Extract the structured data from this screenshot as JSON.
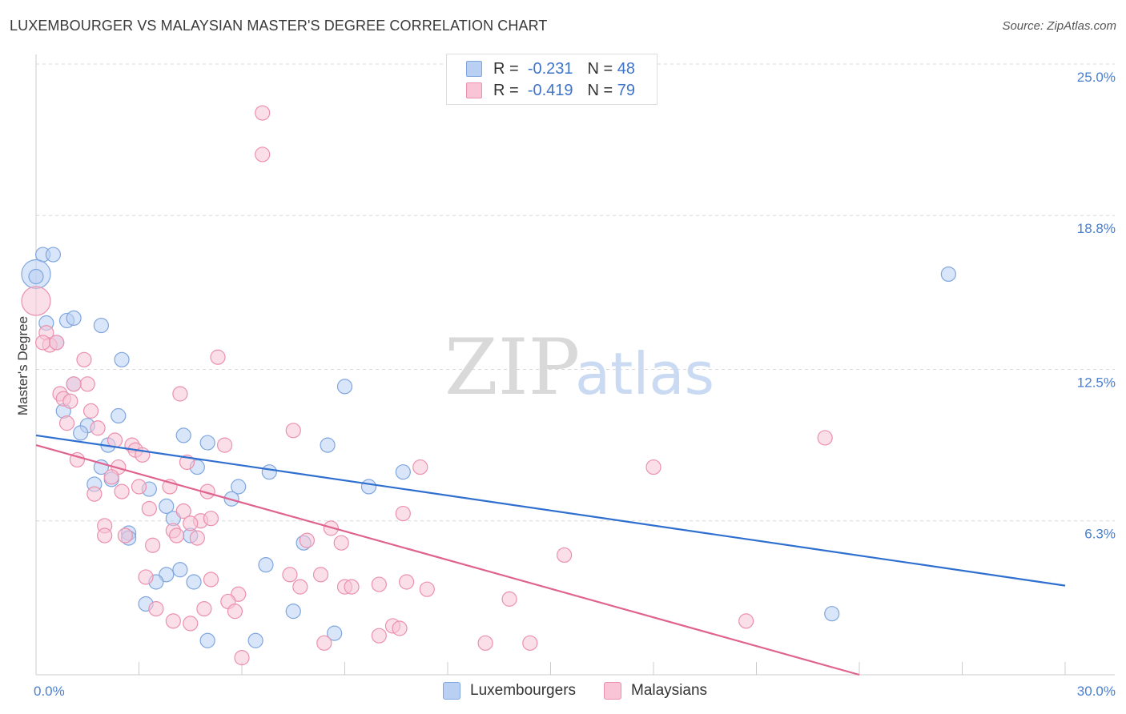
{
  "title": "LUXEMBOURGER VS MALAYSIAN MASTER'S DEGREE CORRELATION CHART",
  "source": "Source: ZipAtlas.com",
  "watermark": {
    "zip": "ZIP",
    "atlas": "atlas"
  },
  "colors": {
    "blue_fill": "#b9d0f2",
    "blue_stroke": "#7fa6df",
    "blue_line": "#2f6fcf",
    "pink_fill": "#f8c4d6",
    "pink_stroke": "#eb90ae",
    "pink_line": "#e0628f",
    "tick_text": "#4a7fd0"
  },
  "legend": {
    "rows": [
      {
        "r_label": "R =",
        "r_value": "-0.231",
        "n_label": "N =",
        "n_value": "48"
      },
      {
        "r_label": "R =",
        "r_value": "-0.419",
        "n_label": "N =",
        "n_value": "79"
      }
    ]
  },
  "bottom_legend": [
    "Luxembourgers",
    "Malaysians"
  ],
  "chart_data": {
    "type": "scatter",
    "title": "LUXEMBOURGER VS MALAYSIAN MASTER'S DEGREE CORRELATION CHART",
    "xlabel": "",
    "ylabel": "Master's Degree",
    "xlim": [
      0,
      30
    ],
    "ylim": [
      0,
      25
    ],
    "x_tick_labels": [
      "0.0%",
      "30.0%"
    ],
    "y_tick_labels": [
      "25.0%",
      "18.8%",
      "12.5%",
      "6.3%"
    ],
    "y_tick_values": [
      25.0,
      18.8,
      12.5,
      6.3
    ],
    "grid": true,
    "series": [
      {
        "name": "Luxembourgers",
        "r": -0.231,
        "n": 48,
        "trend": {
          "x": [
            0,
            30
          ],
          "y": [
            9.8,
            3.65
          ]
        },
        "points": [
          {
            "x": 0.2,
            "y": 17.2
          },
          {
            "x": 0.5,
            "y": 17.2
          },
          {
            "x": 0.0,
            "y": 16.4,
            "big": true
          },
          {
            "x": 0.3,
            "y": 14.4
          },
          {
            "x": 0.9,
            "y": 14.5
          },
          {
            "x": 1.1,
            "y": 14.6
          },
          {
            "x": 1.9,
            "y": 14.3
          },
          {
            "x": 0.6,
            "y": 13.6
          },
          {
            "x": 2.5,
            "y": 12.9
          },
          {
            "x": 1.1,
            "y": 11.9
          },
          {
            "x": 0.8,
            "y": 10.8
          },
          {
            "x": 2.4,
            "y": 10.6
          },
          {
            "x": 1.5,
            "y": 10.2
          },
          {
            "x": 1.3,
            "y": 9.9
          },
          {
            "x": 2.1,
            "y": 9.4
          },
          {
            "x": 4.3,
            "y": 9.8
          },
          {
            "x": 5.0,
            "y": 9.5
          },
          {
            "x": 8.5,
            "y": 9.4
          },
          {
            "x": 9.0,
            "y": 11.8
          },
          {
            "x": 1.9,
            "y": 8.5
          },
          {
            "x": 2.2,
            "y": 8.0
          },
          {
            "x": 1.7,
            "y": 7.8
          },
          {
            "x": 4.7,
            "y": 8.5
          },
          {
            "x": 6.8,
            "y": 8.3
          },
          {
            "x": 10.7,
            "y": 8.3
          },
          {
            "x": 3.3,
            "y": 7.6
          },
          {
            "x": 5.9,
            "y": 7.7
          },
          {
            "x": 9.7,
            "y": 7.7
          },
          {
            "x": 5.7,
            "y": 7.2
          },
          {
            "x": 3.8,
            "y": 6.9
          },
          {
            "x": 4.0,
            "y": 6.4
          },
          {
            "x": 2.7,
            "y": 5.8
          },
          {
            "x": 2.7,
            "y": 5.6
          },
          {
            "x": 4.5,
            "y": 5.7
          },
          {
            "x": 7.8,
            "y": 5.4
          },
          {
            "x": 6.7,
            "y": 4.5
          },
          {
            "x": 4.2,
            "y": 4.3
          },
          {
            "x": 3.8,
            "y": 4.1
          },
          {
            "x": 3.5,
            "y": 3.8
          },
          {
            "x": 4.6,
            "y": 3.8
          },
          {
            "x": 3.2,
            "y": 2.9
          },
          {
            "x": 7.5,
            "y": 2.6
          },
          {
            "x": 8.7,
            "y": 1.7
          },
          {
            "x": 5.0,
            "y": 1.4
          },
          {
            "x": 6.4,
            "y": 1.4
          },
          {
            "x": 26.6,
            "y": 16.4
          },
          {
            "x": 23.2,
            "y": 2.5
          },
          {
            "x": 0.0,
            "y": 16.3
          }
        ]
      },
      {
        "name": "Malaysians",
        "r": -0.419,
        "n": 79,
        "trend": {
          "x": [
            0,
            24
          ],
          "y": [
            9.4,
            0.0
          ]
        },
        "points": [
          {
            "x": 6.6,
            "y": 23.0
          },
          {
            "x": 6.6,
            "y": 21.3
          },
          {
            "x": 0.0,
            "y": 15.3,
            "big": true
          },
          {
            "x": 0.3,
            "y": 14.0
          },
          {
            "x": 0.4,
            "y": 13.5
          },
          {
            "x": 0.2,
            "y": 13.6
          },
          {
            "x": 0.6,
            "y": 13.6
          },
          {
            "x": 1.4,
            "y": 12.9
          },
          {
            "x": 5.3,
            "y": 13.0
          },
          {
            "x": 1.5,
            "y": 11.9
          },
          {
            "x": 1.1,
            "y": 11.9
          },
          {
            "x": 0.7,
            "y": 11.5
          },
          {
            "x": 0.8,
            "y": 11.3
          },
          {
            "x": 1.0,
            "y": 11.2
          },
          {
            "x": 4.2,
            "y": 11.5
          },
          {
            "x": 1.6,
            "y": 10.8
          },
          {
            "x": 0.9,
            "y": 10.3
          },
          {
            "x": 1.8,
            "y": 10.1
          },
          {
            "x": 7.5,
            "y": 10.0
          },
          {
            "x": 2.3,
            "y": 9.6
          },
          {
            "x": 2.8,
            "y": 9.4
          },
          {
            "x": 2.9,
            "y": 9.2
          },
          {
            "x": 3.1,
            "y": 9.0
          },
          {
            "x": 5.5,
            "y": 9.4
          },
          {
            "x": 1.2,
            "y": 8.8
          },
          {
            "x": 4.4,
            "y": 8.7
          },
          {
            "x": 2.4,
            "y": 8.5
          },
          {
            "x": 11.2,
            "y": 8.5
          },
          {
            "x": 18.0,
            "y": 8.5
          },
          {
            "x": 23.0,
            "y": 9.7
          },
          {
            "x": 2.2,
            "y": 8.1
          },
          {
            "x": 3.0,
            "y": 7.7
          },
          {
            "x": 3.9,
            "y": 7.7
          },
          {
            "x": 2.5,
            "y": 7.5
          },
          {
            "x": 5.0,
            "y": 7.5
          },
          {
            "x": 1.7,
            "y": 7.4
          },
          {
            "x": 3.3,
            "y": 6.8
          },
          {
            "x": 4.3,
            "y": 6.7
          },
          {
            "x": 10.7,
            "y": 6.6
          },
          {
            "x": 4.8,
            "y": 6.3
          },
          {
            "x": 5.1,
            "y": 6.4
          },
          {
            "x": 2.0,
            "y": 6.1
          },
          {
            "x": 4.5,
            "y": 6.2
          },
          {
            "x": 4.0,
            "y": 5.9
          },
          {
            "x": 8.6,
            "y": 6.0
          },
          {
            "x": 2.0,
            "y": 5.7
          },
          {
            "x": 2.6,
            "y": 5.7
          },
          {
            "x": 4.1,
            "y": 5.7
          },
          {
            "x": 4.7,
            "y": 5.6
          },
          {
            "x": 7.9,
            "y": 5.5
          },
          {
            "x": 8.9,
            "y": 5.4
          },
          {
            "x": 3.4,
            "y": 5.3
          },
          {
            "x": 15.4,
            "y": 4.9
          },
          {
            "x": 3.2,
            "y": 4.0
          },
          {
            "x": 5.1,
            "y": 3.9
          },
          {
            "x": 7.4,
            "y": 4.1
          },
          {
            "x": 8.3,
            "y": 4.1
          },
          {
            "x": 10.8,
            "y": 3.8
          },
          {
            "x": 10.0,
            "y": 3.7
          },
          {
            "x": 7.7,
            "y": 3.6
          },
          {
            "x": 9.0,
            "y": 3.6
          },
          {
            "x": 9.2,
            "y": 3.6
          },
          {
            "x": 11.4,
            "y": 3.5
          },
          {
            "x": 5.9,
            "y": 3.3
          },
          {
            "x": 5.6,
            "y": 3.0
          },
          {
            "x": 3.5,
            "y": 2.7
          },
          {
            "x": 4.9,
            "y": 2.7
          },
          {
            "x": 5.8,
            "y": 2.6
          },
          {
            "x": 13.8,
            "y": 3.1
          },
          {
            "x": 4.0,
            "y": 2.2
          },
          {
            "x": 4.5,
            "y": 2.1
          },
          {
            "x": 10.4,
            "y": 2.0
          },
          {
            "x": 10.6,
            "y": 1.9
          },
          {
            "x": 20.7,
            "y": 2.2
          },
          {
            "x": 10.0,
            "y": 1.6
          },
          {
            "x": 8.4,
            "y": 1.3
          },
          {
            "x": 13.1,
            "y": 1.3
          },
          {
            "x": 14.4,
            "y": 1.3
          },
          {
            "x": 6.0,
            "y": 0.7
          }
        ]
      }
    ]
  }
}
